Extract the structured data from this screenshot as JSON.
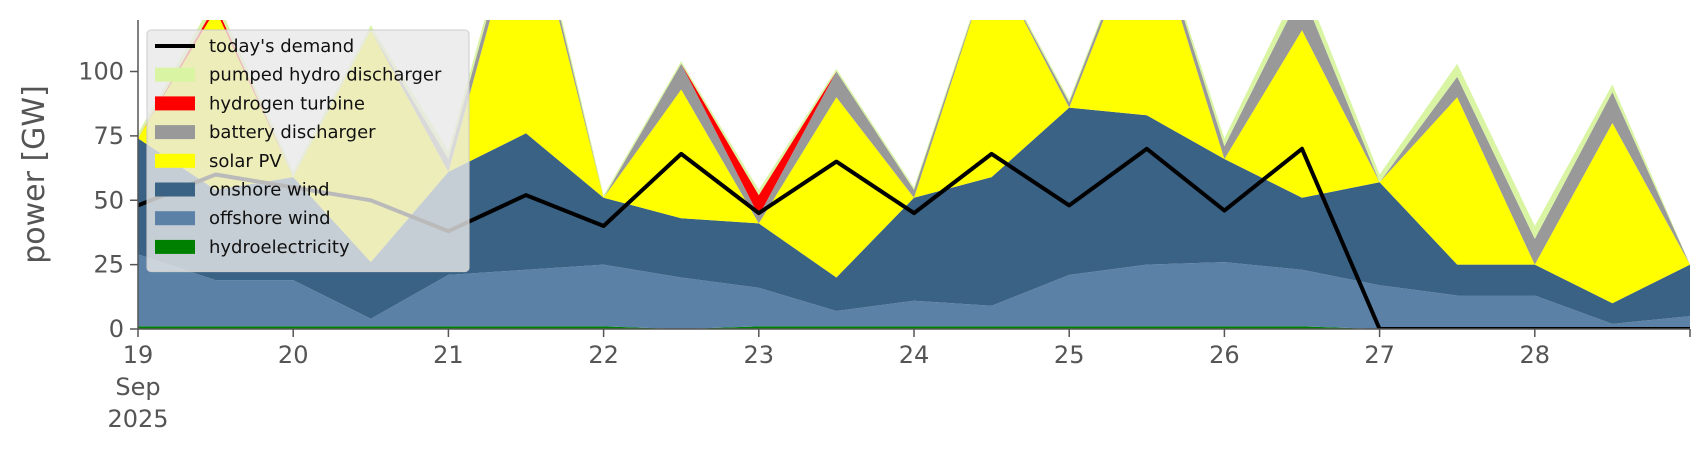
{
  "chart_data": {
    "type": "area",
    "title": "",
    "xlabel": "",
    "ylabel": "power [GW]",
    "xlim": [
      "2025-09-19",
      "2025-09-29"
    ],
    "ylim": [
      0,
      120
    ],
    "yticks": [
      0,
      25,
      50,
      75,
      100
    ],
    "xtick_labels": [
      "19\nSep\n2025",
      "20",
      "21",
      "22",
      "23",
      "24",
      "25",
      "26",
      "27",
      "28"
    ],
    "grid": false,
    "legend_position": "upper-left",
    "x": [
      "2025-09-19",
      "2025-09-19 12:00",
      "2025-09-20",
      "2025-09-20 12:00",
      "2025-09-21",
      "2025-09-21 12:00",
      "2025-09-22",
      "2025-09-22 12:00",
      "2025-09-23",
      "2025-09-23 12:00",
      "2025-09-24",
      "2025-09-24 12:00",
      "2025-09-25",
      "2025-09-25 12:00",
      "2025-09-26",
      "2025-09-26 12:00",
      "2025-09-27",
      "2025-09-27 12:00",
      "2025-09-28",
      "2025-09-28 12:00",
      "2025-09-29"
    ],
    "series": [
      {
        "name": "hydroelectricity",
        "color": "#008000",
        "kind": "area",
        "values": [
          1,
          1,
          1,
          1,
          1,
          1,
          1,
          0,
          1,
          1,
          1,
          1,
          1,
          1,
          1,
          1,
          0,
          0,
          0,
          0,
          0
        ]
      },
      {
        "name": "offshore wind",
        "color": "#5b82a6",
        "kind": "area",
        "values": [
          28,
          18,
          18,
          3,
          20,
          22,
          24,
          20,
          15,
          6,
          10,
          8,
          20,
          24,
          25,
          22,
          17,
          13,
          13,
          2,
          5
        ]
      },
      {
        "name": "onshore wind",
        "color": "#3a6285",
        "kind": "area",
        "values": [
          45,
          35,
          40,
          22,
          40,
          53,
          26,
          23,
          25,
          13,
          40,
          50,
          65,
          58,
          40,
          28,
          40,
          12,
          12,
          8,
          20
        ]
      },
      {
        "name": "solar PV",
        "color": "#ffff00",
        "kind": "area",
        "values": [
          0,
          70,
          0,
          90,
          0,
          95,
          0,
          50,
          0,
          70,
          0,
          85,
          0,
          80,
          0,
          65,
          0,
          65,
          0,
          70,
          0
        ]
      },
      {
        "name": "battery discharger",
        "color": "#999999",
        "kind": "area",
        "values": [
          0,
          0,
          0,
          0,
          5,
          5,
          0,
          10,
          3,
          10,
          3,
          0,
          2,
          3,
          5,
          15,
          0,
          8,
          10,
          12,
          0
        ]
      },
      {
        "name": "hydrogen turbine",
        "color": "#ff0000",
        "kind": "area",
        "values": [
          0,
          2,
          0,
          0,
          0,
          0,
          0,
          0,
          8,
          0,
          0,
          0,
          0,
          0,
          0,
          0,
          0,
          0,
          0,
          0,
          0
        ]
      },
      {
        "name": "pumped hydro discharger",
        "color": "#d9f5a3",
        "kind": "area",
        "values": [
          2,
          3,
          2,
          2,
          3,
          3,
          1,
          1,
          2,
          1,
          1,
          1,
          1,
          1,
          3,
          5,
          3,
          5,
          5,
          3,
          0
        ]
      },
      {
        "name": "today's demand",
        "color": "#000000",
        "kind": "line",
        "values": [
          48,
          60,
          55,
          50,
          38,
          52,
          40,
          68,
          45,
          65,
          45,
          68,
          48,
          70,
          46,
          70,
          0,
          0,
          0,
          0,
          0
        ]
      }
    ]
  }
}
